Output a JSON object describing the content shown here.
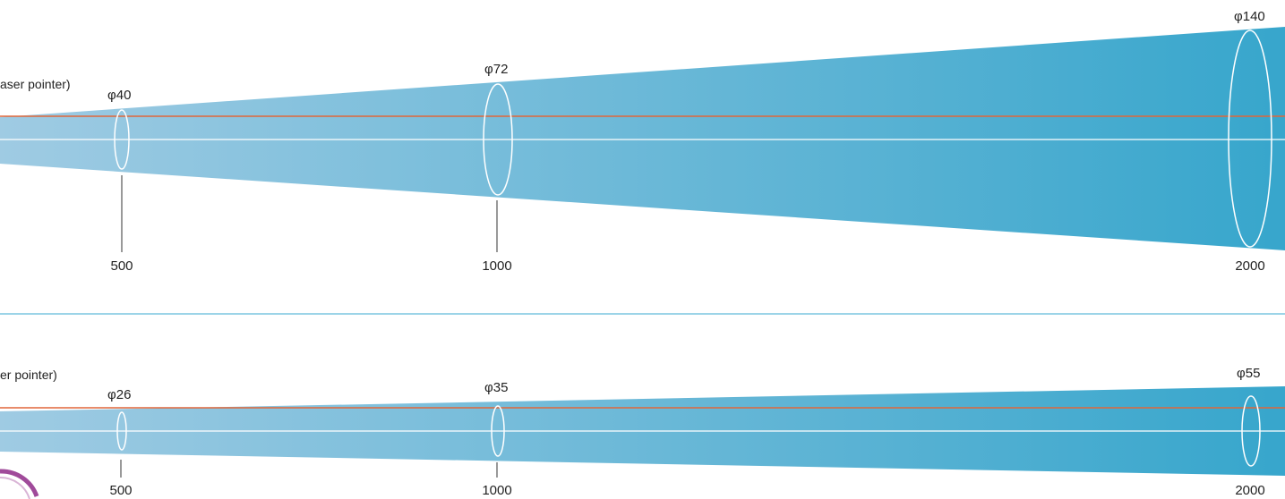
{
  "colors": {
    "beam_start": "#9fcbe3",
    "beam_end": "#37a6cc",
    "laser_line": "#e0673a",
    "axis_line": "#ffffff",
    "ellipse_stroke": "#ffffff",
    "separator": "#7cc5e0",
    "leader_line": "#333333",
    "text": "#222222"
  },
  "panels": [
    {
      "legend_text": "aser pointer)",
      "measurements": [
        {
          "distance": "500",
          "diameter": "φ40"
        },
        {
          "distance": "1000",
          "diameter": "φ72"
        },
        {
          "distance": "2000",
          "diameter": "φ140"
        }
      ]
    },
    {
      "legend_text": "er pointer)",
      "measurements": [
        {
          "distance": "500",
          "diameter": "φ26"
        },
        {
          "distance": "1000",
          "diameter": "φ35"
        },
        {
          "distance": "2000",
          "diameter": "φ55"
        }
      ]
    }
  ]
}
